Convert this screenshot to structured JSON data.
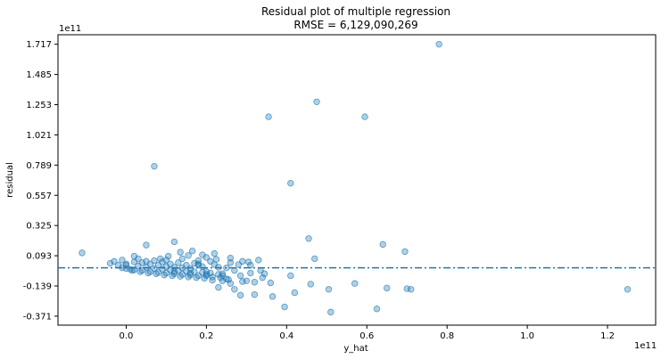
{
  "chart_data": {
    "type": "scatter",
    "title": "Residual plot of multiple regression",
    "subtitle": "RMSE = 6,129,090,269",
    "xlabel": "y_hat",
    "ylabel": "residual",
    "x_offset_label": "1e11",
    "y_offset_label": "1e11",
    "xlim": [
      -0.17,
      1.32
    ],
    "ylim": [
      -0.44,
      1.79
    ],
    "x_ticks": [
      0.0,
      0.2,
      0.4,
      0.6,
      0.8,
      1.0,
      1.2
    ],
    "x_tick_labels": [
      "0.0",
      "0.2",
      "0.4",
      "0.6",
      "0.8",
      "1.0",
      "1.2"
    ],
    "y_ticks": [
      -0.371,
      -0.139,
      0.093,
      0.325,
      0.557,
      0.789,
      1.021,
      1.253,
      1.485,
      1.717
    ],
    "y_tick_labels": [
      "-0.371",
      "-0.139",
      "0.093",
      "0.325",
      "0.557",
      "0.789",
      "1.021",
      "1.253",
      "1.485",
      "1.717"
    ],
    "reference_line": {
      "y": 0.0,
      "style": "dash-dot"
    },
    "grid": false,
    "colors": {
      "points": "#1f77b4",
      "reference_line": "#1f77b4"
    },
    "series": [
      {
        "points": [
          [
            0.78,
            1.717
          ],
          [
            0.475,
            1.275
          ],
          [
            0.355,
            1.16
          ],
          [
            0.595,
            1.16
          ],
          [
            0.07,
            0.78
          ],
          [
            0.41,
            0.65
          ],
          [
            0.455,
            0.225
          ],
          [
            0.64,
            0.18
          ],
          [
            0.695,
            0.125
          ],
          [
            -0.11,
            0.115
          ],
          [
            0.05,
            0.175
          ],
          [
            0.12,
            0.2
          ],
          [
            0.47,
            0.07
          ],
          [
            0.305,
            0.045
          ],
          [
            0.345,
            -0.045
          ],
          [
            0.41,
            -0.06
          ],
          [
            0.34,
            -0.075
          ],
          [
            0.46,
            -0.125
          ],
          [
            0.57,
            -0.12
          ],
          [
            0.65,
            -0.155
          ],
          [
            0.7,
            -0.16
          ],
          [
            0.71,
            -0.165
          ],
          [
            1.25,
            -0.165
          ],
          [
            0.505,
            -0.165
          ],
          [
            0.42,
            -0.19
          ],
          [
            0.285,
            -0.21
          ],
          [
            0.32,
            -0.205
          ],
          [
            0.365,
            -0.22
          ],
          [
            0.395,
            -0.3
          ],
          [
            0.51,
            -0.34
          ],
          [
            0.625,
            -0.315
          ],
          [
            0.26,
            -0.12
          ],
          [
            0.23,
            -0.15
          ],
          [
            0.27,
            -0.165
          ],
          [
            0.29,
            -0.105
          ],
          [
            0.25,
            -0.085
          ],
          [
            0.21,
            0.05
          ],
          [
            0.18,
            0.03
          ],
          [
            0.19,
            0.1
          ],
          [
            0.135,
            0.12
          ],
          [
            0.105,
            0.09
          ],
          [
            0.165,
            0.13
          ],
          [
            0.2,
            0.08
          ],
          [
            0.22,
            0.11
          ],
          [
            0.26,
            0.075
          ],
          [
            0.28,
            0.025
          ],
          [
            0.31,
            0.02
          ],
          [
            0.335,
            -0.02
          ],
          [
            0.24,
            -0.045
          ],
          [
            0.2,
            -0.06
          ],
          [
            0.215,
            -0.095
          ],
          [
            0.24,
            -0.1
          ],
          [
            0.285,
            -0.06
          ],
          [
            0.3,
            -0.1
          ],
          [
            0.32,
            -0.11
          ],
          [
            0.36,
            -0.115
          ],
          [
            0.225,
            0.065
          ],
          [
            0.155,
            0.095
          ],
          [
            0.085,
            0.07
          ],
          [
            0.02,
            0.09
          ],
          [
            -0.03,
            0.05
          ],
          [
            -0.04,
            0.035
          ],
          [
            -0.01,
            0.06
          ],
          [
            0.03,
            0.07
          ],
          [
            0.0,
            0.02
          ],
          [
            0.01,
            -0.01
          ],
          [
            0.02,
            -0.015
          ],
          [
            0.04,
            -0.02
          ],
          [
            0.06,
            -0.03
          ],
          [
            0.08,
            -0.035
          ],
          [
            0.1,
            -0.04
          ],
          [
            0.12,
            -0.045
          ],
          [
            0.14,
            -0.05
          ],
          [
            0.16,
            -0.055
          ],
          [
            0.18,
            -0.06
          ],
          [
            0.2,
            -0.03
          ],
          [
            0.0,
            0.03
          ],
          [
            0.03,
            0.015
          ],
          [
            0.05,
            0.005
          ],
          [
            0.07,
            -0.005
          ],
          [
            0.09,
            -0.01
          ],
          [
            0.11,
            -0.015
          ],
          [
            0.13,
            -0.02
          ],
          [
            0.15,
            -0.025
          ],
          [
            0.17,
            -0.03
          ],
          [
            0.19,
            -0.035
          ],
          [
            0.21,
            -0.04
          ],
          [
            0.23,
            -0.05
          ],
          [
            0.04,
            0.04
          ],
          [
            0.06,
            0.03
          ],
          [
            0.08,
            0.02
          ],
          [
            0.1,
            0.01
          ],
          [
            0.12,
            0.005
          ],
          [
            0.14,
            0.0
          ],
          [
            0.16,
            -0.005
          ],
          [
            0.18,
            0.02
          ],
          [
            0.02,
            0.045
          ],
          [
            0.05,
            0.05
          ],
          [
            0.09,
            0.045
          ],
          [
            0.13,
            0.04
          ],
          [
            0.17,
            0.035
          ],
          [
            0.22,
            0.025
          ],
          [
            0.25,
            0.0
          ],
          [
            0.27,
            -0.02
          ],
          [
            -0.02,
            0.02
          ],
          [
            -0.01,
            0.0
          ],
          [
            0.0,
            -0.005
          ],
          [
            0.015,
            -0.02
          ],
          [
            0.035,
            -0.03
          ],
          [
            0.055,
            -0.04
          ],
          [
            0.075,
            -0.045
          ],
          [
            0.095,
            -0.055
          ],
          [
            0.115,
            -0.06
          ],
          [
            0.135,
            -0.065
          ],
          [
            0.155,
            -0.07
          ],
          [
            0.175,
            -0.075
          ],
          [
            0.195,
            -0.08
          ],
          [
            0.215,
            -0.07
          ],
          [
            0.235,
            -0.075
          ],
          [
            0.255,
            -0.09
          ],
          [
            0.11,
            0.03
          ],
          [
            0.15,
            0.02
          ],
          [
            0.19,
            0.01
          ],
          [
            0.23,
            0.005
          ],
          [
            0.12,
            -0.03
          ],
          [
            0.16,
            -0.04
          ],
          [
            0.2,
            -0.05
          ],
          [
            0.24,
            -0.06
          ],
          [
            0.07,
            0.055
          ],
          [
            0.1,
            0.06
          ],
          [
            0.14,
            0.07
          ],
          [
            0.18,
            0.055
          ],
          [
            0.26,
            0.04
          ],
          [
            0.29,
            0.05
          ],
          [
            0.31,
            -0.04
          ],
          [
            0.33,
            0.06
          ]
        ]
      }
    ]
  }
}
